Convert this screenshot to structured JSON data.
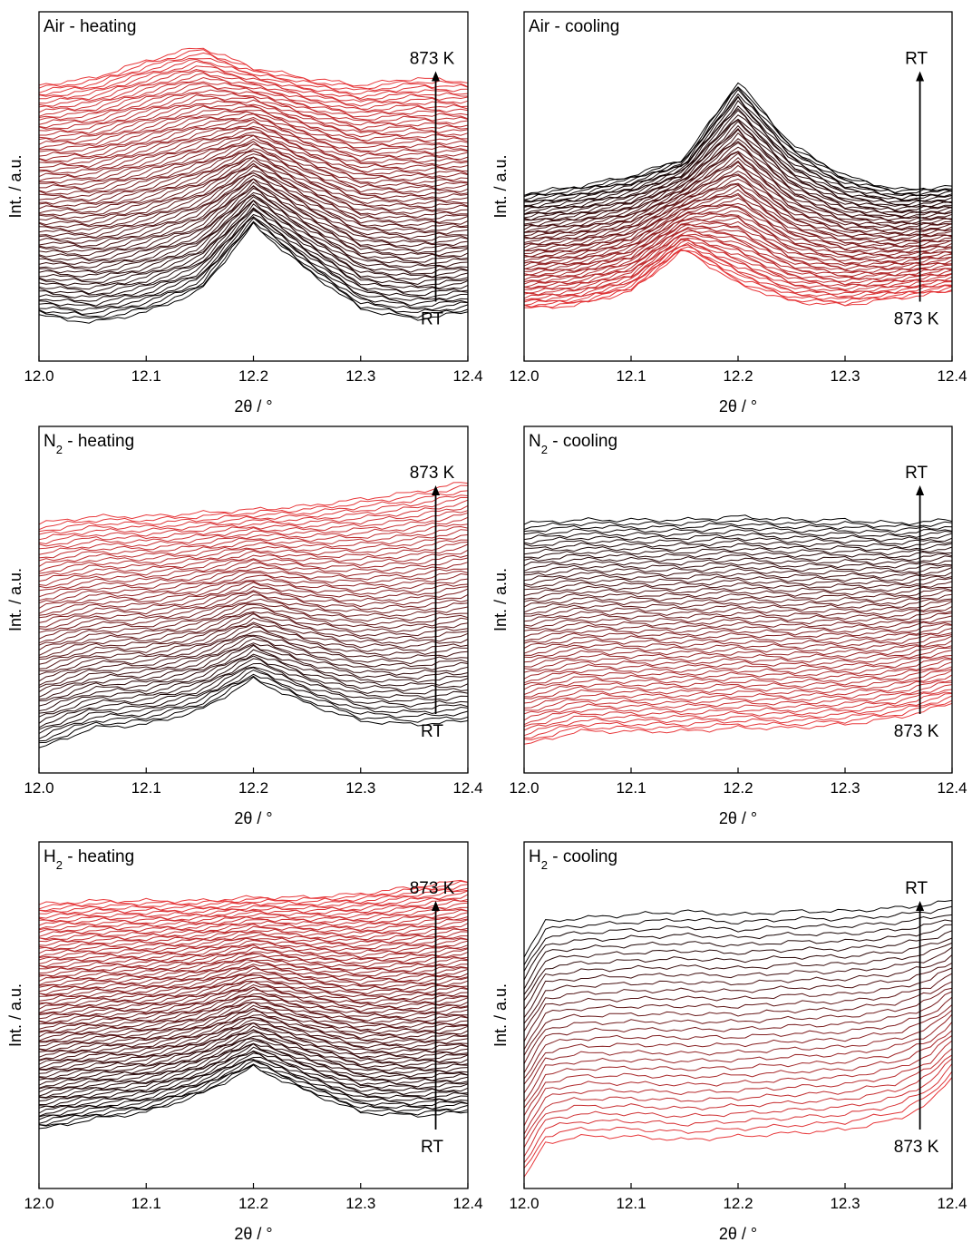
{
  "chart_data": [
    {
      "type": "line",
      "title": "Air - heating",
      "title_sub": "",
      "title_rest": "",
      "xlabel": "2θ / °",
      "ylabel": "Int. / a.u.",
      "xlim": [
        12.0,
        12.4
      ],
      "xticks": [
        "12.0",
        "12.1",
        "12.2",
        "12.3",
        "12.4"
      ],
      "arrow_top_label": "873 K",
      "arrow_bottom_label": "RT",
      "arrow_x": 12.37,
      "start_color": "#000000",
      "end_color": "#e8383b",
      "series_count": 80,
      "first_curve": {
        "x": [
          12.0,
          12.05,
          12.1,
          12.15,
          12.2,
          12.25,
          12.3,
          12.35,
          12.4
        ],
        "y": [
          0.13,
          0.11,
          0.14,
          0.2,
          0.39,
          0.26,
          0.15,
          0.12,
          0.14
        ]
      },
      "last_curve": {
        "x": [
          12.0,
          12.05,
          12.1,
          12.15,
          12.2,
          12.25,
          12.3,
          12.35,
          12.4
        ],
        "y": [
          0.79,
          0.81,
          0.86,
          0.9,
          0.84,
          0.81,
          0.79,
          0.81,
          0.8
        ]
      }
    },
    {
      "type": "line",
      "title": "Air - cooling",
      "title_sub": "",
      "title_rest": "",
      "xlabel": "2θ / °",
      "ylabel": "Int. / a.u.",
      "xlim": [
        12.0,
        12.4
      ],
      "xticks": [
        "12.0",
        "12.1",
        "12.2",
        "12.3",
        "12.4"
      ],
      "arrow_top_label": "RT",
      "arrow_bottom_label": "873 K",
      "arrow_x": 12.37,
      "start_color": "#e8383b",
      "end_color": "#000000",
      "series_count": 70,
      "first_curve": {
        "x": [
          12.0,
          12.05,
          12.1,
          12.15,
          12.2,
          12.25,
          12.3,
          12.35,
          12.4
        ],
        "y": [
          0.15,
          0.16,
          0.2,
          0.32,
          0.22,
          0.17,
          0.16,
          0.18,
          0.2
        ]
      },
      "last_curve": {
        "x": [
          12.0,
          12.05,
          12.1,
          12.15,
          12.2,
          12.25,
          12.3,
          12.35,
          12.4
        ],
        "y": [
          0.48,
          0.5,
          0.53,
          0.58,
          0.8,
          0.62,
          0.53,
          0.49,
          0.5
        ]
      }
    },
    {
      "type": "line",
      "title": "N",
      "title_sub": "2",
      "title_rest": " - heating",
      "xlabel": "2θ / °",
      "ylabel": "Int. / a.u.",
      "xlim": [
        12.0,
        12.4
      ],
      "xticks": [
        "12.0",
        "12.1",
        "12.2",
        "12.3",
        "12.4"
      ],
      "arrow_top_label": "873 K",
      "arrow_bottom_label": "RT",
      "arrow_x": 12.37,
      "start_color": "#000000",
      "end_color": "#e8383b",
      "series_count": 60,
      "first_curve": {
        "x": [
          12.0,
          12.05,
          12.1,
          12.15,
          12.2,
          12.25,
          12.3,
          12.35,
          12.4
        ],
        "y": [
          0.07,
          0.13,
          0.14,
          0.18,
          0.27,
          0.2,
          0.15,
          0.14,
          0.15
        ]
      },
      "last_curve": {
        "x": [
          12.0,
          12.05,
          12.1,
          12.15,
          12.2,
          12.25,
          12.3,
          12.35,
          12.4
        ],
        "y": [
          0.72,
          0.74,
          0.74,
          0.75,
          0.76,
          0.77,
          0.79,
          0.81,
          0.84
        ]
      }
    },
    {
      "type": "line",
      "title": "N",
      "title_sub": "2",
      "title_rest": " - cooling",
      "xlabel": "2θ / °",
      "ylabel": "Int. / a.u.",
      "xlim": [
        12.0,
        12.4
      ],
      "xticks": [
        "12.0",
        "12.1",
        "12.2",
        "12.3",
        "12.4"
      ],
      "arrow_top_label": "RT",
      "arrow_bottom_label": "873 K",
      "arrow_x": 12.37,
      "start_color": "#e8383b",
      "end_color": "#000000",
      "series_count": 60,
      "first_curve": {
        "x": [
          12.0,
          12.05,
          12.1,
          12.15,
          12.2,
          12.25,
          12.3,
          12.35,
          12.4
        ],
        "y": [
          0.08,
          0.12,
          0.12,
          0.12,
          0.13,
          0.13,
          0.14,
          0.16,
          0.2
        ]
      },
      "last_curve": {
        "x": [
          12.0,
          12.05,
          12.1,
          12.15,
          12.2,
          12.25,
          12.3,
          12.35,
          12.4
        ],
        "y": [
          0.72,
          0.73,
          0.73,
          0.73,
          0.74,
          0.73,
          0.73,
          0.72,
          0.73
        ]
      }
    },
    {
      "type": "line",
      "title": "H",
      "title_sub": "2",
      "title_rest": " - heating",
      "xlabel": "2θ / °",
      "ylabel": "Int. / a.u.",
      "xlim": [
        12.0,
        12.4
      ],
      "xticks": [
        "12.0",
        "12.1",
        "12.2",
        "12.3",
        "12.4"
      ],
      "arrow_top_label": "873 K",
      "arrow_bottom_label": "RT",
      "arrow_x": 12.37,
      "start_color": "#000000",
      "end_color": "#e8383b",
      "series_count": 90,
      "first_curve": {
        "x": [
          12.0,
          12.05,
          12.1,
          12.15,
          12.2,
          12.25,
          12.3,
          12.35,
          12.4
        ],
        "y": [
          0.17,
          0.2,
          0.22,
          0.27,
          0.35,
          0.28,
          0.22,
          0.21,
          0.22
        ]
      },
      "last_curve": {
        "x": [
          12.0,
          12.05,
          12.1,
          12.15,
          12.2,
          12.25,
          12.3,
          12.35,
          12.4
        ],
        "y": [
          0.82,
          0.83,
          0.83,
          0.83,
          0.84,
          0.84,
          0.85,
          0.87,
          0.89
        ]
      }
    },
    {
      "type": "line",
      "title": "H",
      "title_sub": "2",
      "title_rest": " - cooling",
      "xlabel": "2θ / °",
      "ylabel": "Int. / a.u.",
      "xlim": [
        12.0,
        12.4
      ],
      "xticks": [
        "12.0",
        "12.1",
        "12.2",
        "12.3",
        "12.4"
      ],
      "arrow_top_label": "RT",
      "arrow_bottom_label": "873 K",
      "arrow_x": 12.37,
      "start_color": "#e8383b",
      "end_color": "#000000",
      "series_count": 30,
      "first_curve": {
        "x": [
          12.0,
          12.02,
          12.05,
          12.1,
          12.15,
          12.2,
          12.25,
          12.3,
          12.35,
          12.38,
          12.4
        ],
        "y": [
          0.03,
          0.13,
          0.15,
          0.15,
          0.14,
          0.15,
          0.16,
          0.17,
          0.2,
          0.25,
          0.32
        ]
      },
      "last_curve": {
        "x": [
          12.0,
          12.02,
          12.05,
          12.1,
          12.15,
          12.2,
          12.25,
          12.3,
          12.35,
          12.38,
          12.4
        ],
        "y": [
          0.67,
          0.77,
          0.78,
          0.79,
          0.8,
          0.79,
          0.8,
          0.8,
          0.81,
          0.82,
          0.83
        ]
      }
    }
  ]
}
